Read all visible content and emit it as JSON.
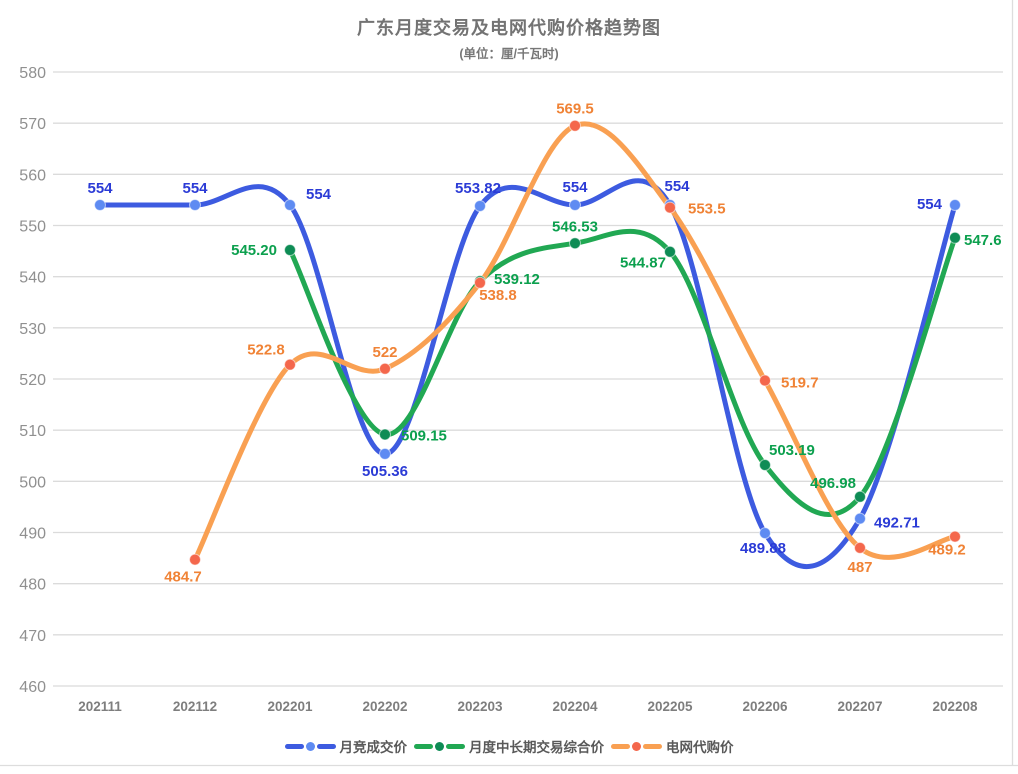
{
  "title": {
    "text": "广东月度交易及电网代购价格趋势图",
    "subtitle": "(单位：厘/千瓦时)"
  },
  "chart_data": {
    "type": "line",
    "smooth": true,
    "title": "广东月度交易及电网代购价格趋势图",
    "subtitle": "(单位：厘/千瓦时)",
    "xlabel": "",
    "ylabel": "",
    "x_categories": [
      "202111",
      "202112",
      "202201",
      "202202",
      "202203",
      "202204",
      "202205",
      "202206",
      "202207",
      "202208"
    ],
    "ylim": [
      460,
      580
    ],
    "y_tick_step": 10,
    "grid": "horizontal-only",
    "grid_color": "#DBDBDB",
    "border_color": "#DDDDDD",
    "y_axis_label_color": "#909090",
    "x_axis_label_color": "#7E7E7E",
    "legend_position": "bottom",
    "legend_text_color": "#595959",
    "series": [
      {
        "name": "月竞成交价",
        "line_color": "#3D5BE0",
        "marker_color": "#5E8BF2",
        "label_color": "#2B3BD6",
        "start_index": 0,
        "values": [
          554,
          554,
          554,
          505.36,
          553.82,
          554,
          554,
          489.88,
          492.71,
          554
        ],
        "point_labels": [
          "554",
          "554",
          "554",
          "505.36",
          "553.82",
          "554",
          "554",
          "489.88",
          "492.71",
          "554"
        ],
        "label_placements": [
          [
            0,
            -12,
            "middle"
          ],
          [
            0,
            -12,
            "middle"
          ],
          [
            16,
            -6,
            "start"
          ],
          [
            0,
            22,
            "middle"
          ],
          [
            -2,
            -13,
            "middle"
          ],
          [
            0,
            -13,
            "middle"
          ],
          [
            7,
            -14,
            "middle"
          ],
          [
            -2,
            20,
            "middle"
          ],
          [
            14,
            9,
            "start"
          ],
          [
            -13,
            4,
            "end"
          ]
        ]
      },
      {
        "name": "月度中长期交易综合价",
        "line_color": "#21A853",
        "marker_color": "#0E8C55",
        "label_color": "#0CA04E",
        "start_index": 2,
        "values": [
          545.2,
          509.15,
          539.12,
          546.53,
          544.87,
          503.19,
          496.98,
          547.6
        ],
        "point_labels": [
          "545.20",
          "509.15",
          "539.12",
          "546.53",
          "544.87",
          "503.19",
          "496.98",
          "547.6"
        ],
        "label_placements": [
          [
            -13,
            5,
            "end"
          ],
          [
            16,
            6,
            "start"
          ],
          [
            14,
            3,
            "start"
          ],
          [
            0,
            -12,
            "middle"
          ],
          [
            -27,
            16,
            "middle"
          ],
          [
            4,
            -10,
            "start"
          ],
          [
            -4,
            -9,
            "end"
          ],
          [
            9,
            7,
            "start"
          ]
        ]
      },
      {
        "name": "电网代购价",
        "line_color": "#F9A052",
        "marker_color": "#F4674C",
        "label_color": "#F08336",
        "start_index": 1,
        "values": [
          484.7,
          522.8,
          522,
          538.8,
          569.5,
          553.5,
          519.7,
          487,
          489.2
        ],
        "point_labels": [
          "484.7",
          "522.8",
          "522",
          "538.8",
          "569.5",
          "553.5",
          "519.7",
          "487",
          "489.2"
        ],
        "label_placements": [
          [
            -12,
            22,
            "middle"
          ],
          [
            -24,
            -10,
            "middle"
          ],
          [
            0,
            -12,
            "middle"
          ],
          [
            18,
            17,
            "middle"
          ],
          [
            0,
            -12,
            "middle"
          ],
          [
            18,
            6,
            "start"
          ],
          [
            16,
            7,
            "start"
          ],
          [
            0,
            24,
            "middle"
          ],
          [
            -8,
            18,
            "middle"
          ]
        ]
      }
    ]
  }
}
